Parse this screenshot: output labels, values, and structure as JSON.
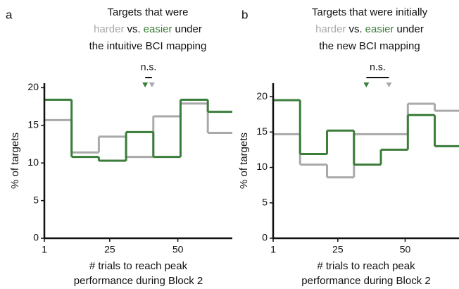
{
  "chart_data": [
    {
      "type": "histogram",
      "panel": "a",
      "title_top": "Targets that were",
      "title_conj": "vs.",
      "title_tail": "under",
      "title_bottom": "the intuitive BCI mapping",
      "xlabel": [
        "# trials to reach peak",
        "performance during Block 2"
      ],
      "ylabel": "% of targets",
      "bins": [
        1,
        11,
        21,
        31,
        41,
        51,
        61,
        70
      ],
      "series": [
        {
          "name": "harder",
          "color": "#a9a9a9",
          "values": [
            15.7,
            11.4,
            13.5,
            10.8,
            16.2,
            17.9,
            14.0
          ],
          "median": 40.5
        },
        {
          "name": "easier",
          "color": "#3b7d3b",
          "values": [
            18.4,
            10.8,
            10.3,
            14.1,
            10.8,
            18.4,
            16.8
          ],
          "median": 38
        }
      ],
      "annotation": "n.s.",
      "xlim": [
        1,
        70
      ],
      "xticks": [
        1,
        25,
        50
      ],
      "ylim": [
        0,
        20.6
      ],
      "yticks": [
        0,
        5,
        10,
        15,
        20
      ]
    },
    {
      "type": "histogram",
      "panel": "b",
      "title_top": "Targets that were initially",
      "title_conj": "vs.",
      "title_tail": "under",
      "title_bottom": "the new BCI mapping",
      "xlabel": [
        "# trials to reach peak",
        "performance during Block 2"
      ],
      "ylabel": "% of targets",
      "bins": [
        1,
        11,
        21,
        31,
        41,
        51,
        61,
        70
      ],
      "series": [
        {
          "name": "harder",
          "color": "#a9a9a9",
          "values": [
            14.7,
            10.4,
            8.6,
            14.7,
            14.7,
            19.0,
            18.0
          ],
          "median": 44
        },
        {
          "name": "easier",
          "color": "#3b7d3b",
          "values": [
            19.5,
            11.9,
            15.2,
            10.4,
            12.5,
            17.4,
            13.0
          ],
          "median": 35.6
        }
      ],
      "annotation": "n.s.",
      "xlim": [
        1,
        70
      ],
      "xticks": [
        1,
        25,
        50
      ],
      "ylim": [
        0,
        21.9
      ],
      "yticks": [
        0,
        5,
        10,
        15,
        20
      ]
    }
  ]
}
